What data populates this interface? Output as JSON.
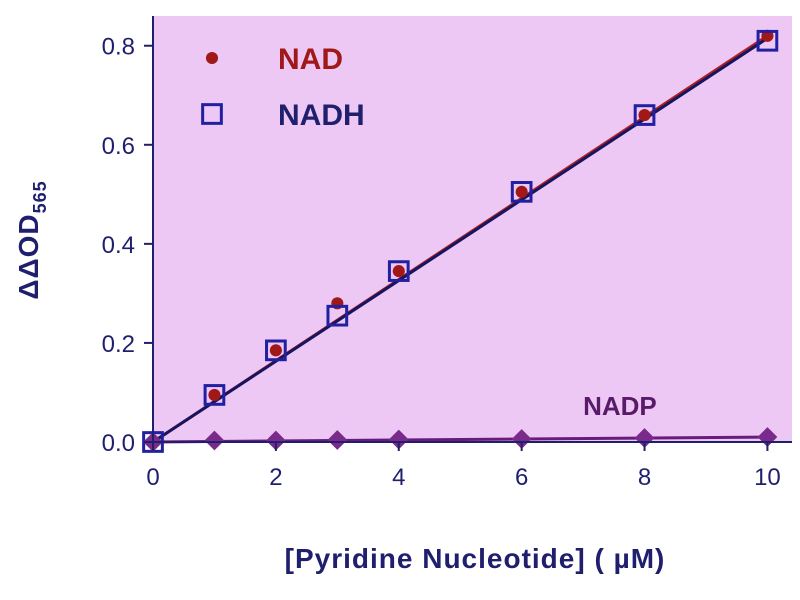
{
  "chart_data": {
    "type": "scatter",
    "xlabel": "[Pyridine Nucleotide] ( µM)",
    "ylabel_main": "ΔΔOD",
    "ylabel_sub": "565",
    "xlim": [
      0,
      10.4
    ],
    "ylim": [
      0,
      0.86
    ],
    "x_ticks": [
      0,
      2,
      4,
      6,
      8,
      10
    ],
    "x_tick_labels": [
      "0",
      "2",
      "4",
      "6",
      "8",
      "10"
    ],
    "y_ticks": [
      0.0,
      0.2,
      0.4,
      0.6,
      0.8
    ],
    "y_tick_labels": [
      "0.0",
      "0.2",
      "0.4",
      "0.6",
      "0.8"
    ],
    "background_color": "#eec8f5",
    "grid": false,
    "legend_position": "top-left",
    "series": [
      {
        "name": "NAD",
        "marker": "circle",
        "color": "#a01818",
        "x": [
          0,
          1,
          2,
          3,
          4,
          6,
          8,
          10
        ],
        "y": [
          0.0,
          0.095,
          0.185,
          0.28,
          0.345,
          0.505,
          0.66,
          0.82
        ],
        "fit": {
          "x": [
            0,
            10
          ],
          "y": [
            0.0,
            0.82
          ],
          "color": "#b02020"
        }
      },
      {
        "name": "NADH",
        "marker": "square-open",
        "color": "#2020a0",
        "x": [
          0,
          1,
          2,
          3,
          4,
          6,
          8,
          10
        ],
        "y": [
          0.0,
          0.095,
          0.185,
          0.255,
          0.345,
          0.505,
          0.66,
          0.81
        ],
        "fit": {
          "x": [
            0,
            10
          ],
          "y": [
            0.0,
            0.815
          ],
          "color": "#151560"
        }
      },
      {
        "name": "NADP",
        "marker": "diamond",
        "color": "#7a2a8a",
        "x": [
          0,
          1,
          2,
          3,
          4,
          6,
          8,
          10
        ],
        "y": [
          0.0,
          0.003,
          0.003,
          0.004,
          0.005,
          0.006,
          0.008,
          0.01
        ],
        "fit": {
          "x": [
            0,
            10
          ],
          "y": [
            0.0,
            0.01
          ],
          "color": "#6a1a7a"
        }
      }
    ],
    "legend": [
      {
        "label": "NAD",
        "marker": "circle",
        "color": "#a01818",
        "text_color": "#a01818"
      },
      {
        "label": "NADH",
        "marker": "square-open",
        "color": "#2020a0",
        "text_color": "#1f1f6e"
      }
    ],
    "annotations": [
      {
        "text": "NADP",
        "x": 7.0,
        "y": 0.055,
        "color": "#5a1a6a"
      }
    ]
  }
}
